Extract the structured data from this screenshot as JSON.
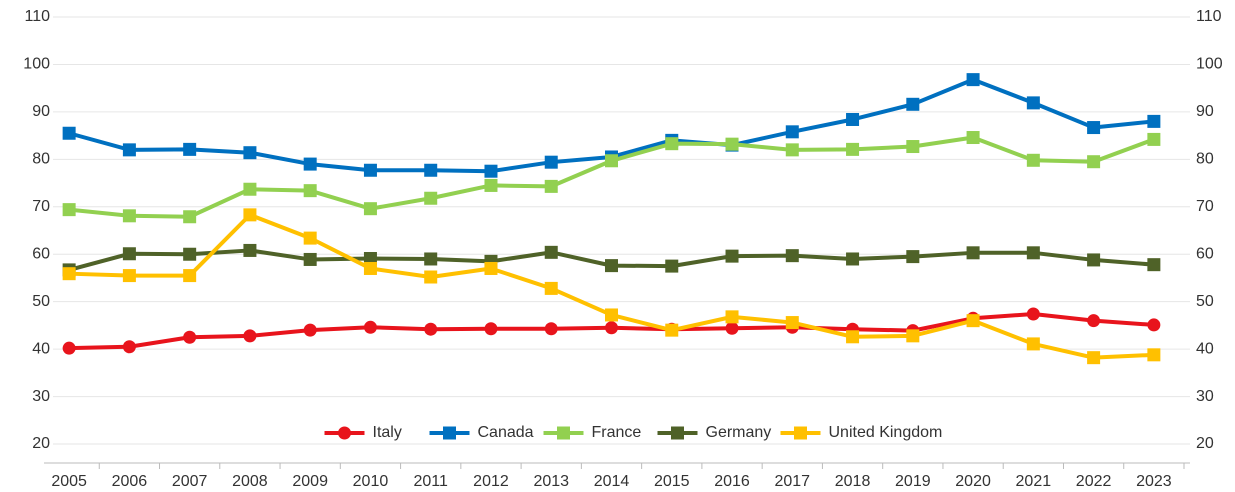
{
  "chart_data": {
    "type": "line",
    "categories": [
      "2005",
      "2006",
      "2007",
      "2008",
      "2009",
      "2010",
      "2011",
      "2012",
      "2013",
      "2014",
      "2015",
      "2016",
      "2017",
      "2018",
      "2019",
      "2020",
      "2021",
      "2022",
      "2023"
    ],
    "series": [
      {
        "name": "Italy",
        "color": "#e8141c",
        "marker": "circle",
        "values": [
          40.2,
          40.5,
          42.5,
          42.8,
          44.0,
          44.6,
          44.2,
          44.3,
          44.3,
          44.5,
          44.2,
          44.4,
          44.6,
          44.2,
          43.9,
          46.5,
          47.4,
          46.0,
          45.1
        ]
      },
      {
        "name": "Canada",
        "color": "#0070c0",
        "marker": "square",
        "values": [
          85.5,
          82.0,
          82.1,
          81.4,
          79.0,
          77.7,
          77.7,
          77.5,
          79.4,
          80.5,
          84.0,
          83.0,
          85.8,
          88.4,
          91.6,
          96.8,
          91.9,
          86.7,
          88.0
        ]
      },
      {
        "name": "France",
        "color": "#92d050",
        "marker": "square",
        "values": [
          69.4,
          68.1,
          67.9,
          73.7,
          73.4,
          69.6,
          71.8,
          74.5,
          74.3,
          79.7,
          83.3,
          83.2,
          82.0,
          82.1,
          82.7,
          84.6,
          79.8,
          79.5,
          84.2
        ]
      },
      {
        "name": "Germany",
        "color": "#4f6228",
        "marker": "square",
        "values": [
          56.7,
          60.1,
          60.0,
          60.8,
          58.9,
          59.1,
          59.0,
          58.5,
          60.4,
          57.6,
          57.5,
          59.6,
          59.7,
          59.0,
          59.5,
          60.3,
          60.3,
          58.8,
          57.8
        ]
      },
      {
        "name": "United Kingdom",
        "color": "#ffc000",
        "marker": "square",
        "values": [
          55.9,
          55.5,
          55.5,
          68.3,
          63.4,
          57.0,
          55.2,
          57.0,
          52.8,
          47.2,
          44.0,
          46.8,
          45.6,
          42.6,
          42.8,
          46.0,
          41.1,
          38.2,
          38.8
        ]
      }
    ],
    "ylim": [
      16,
      110
    ],
    "yticks": [
      20,
      30,
      40,
      50,
      60,
      70,
      80,
      90,
      100,
      110
    ],
    "y2lim": [
      16,
      110
    ],
    "y2ticks": [
      20,
      30,
      40,
      50,
      60,
      70,
      80,
      90,
      100,
      110
    ],
    "grid": true,
    "legend": "bottom"
  }
}
